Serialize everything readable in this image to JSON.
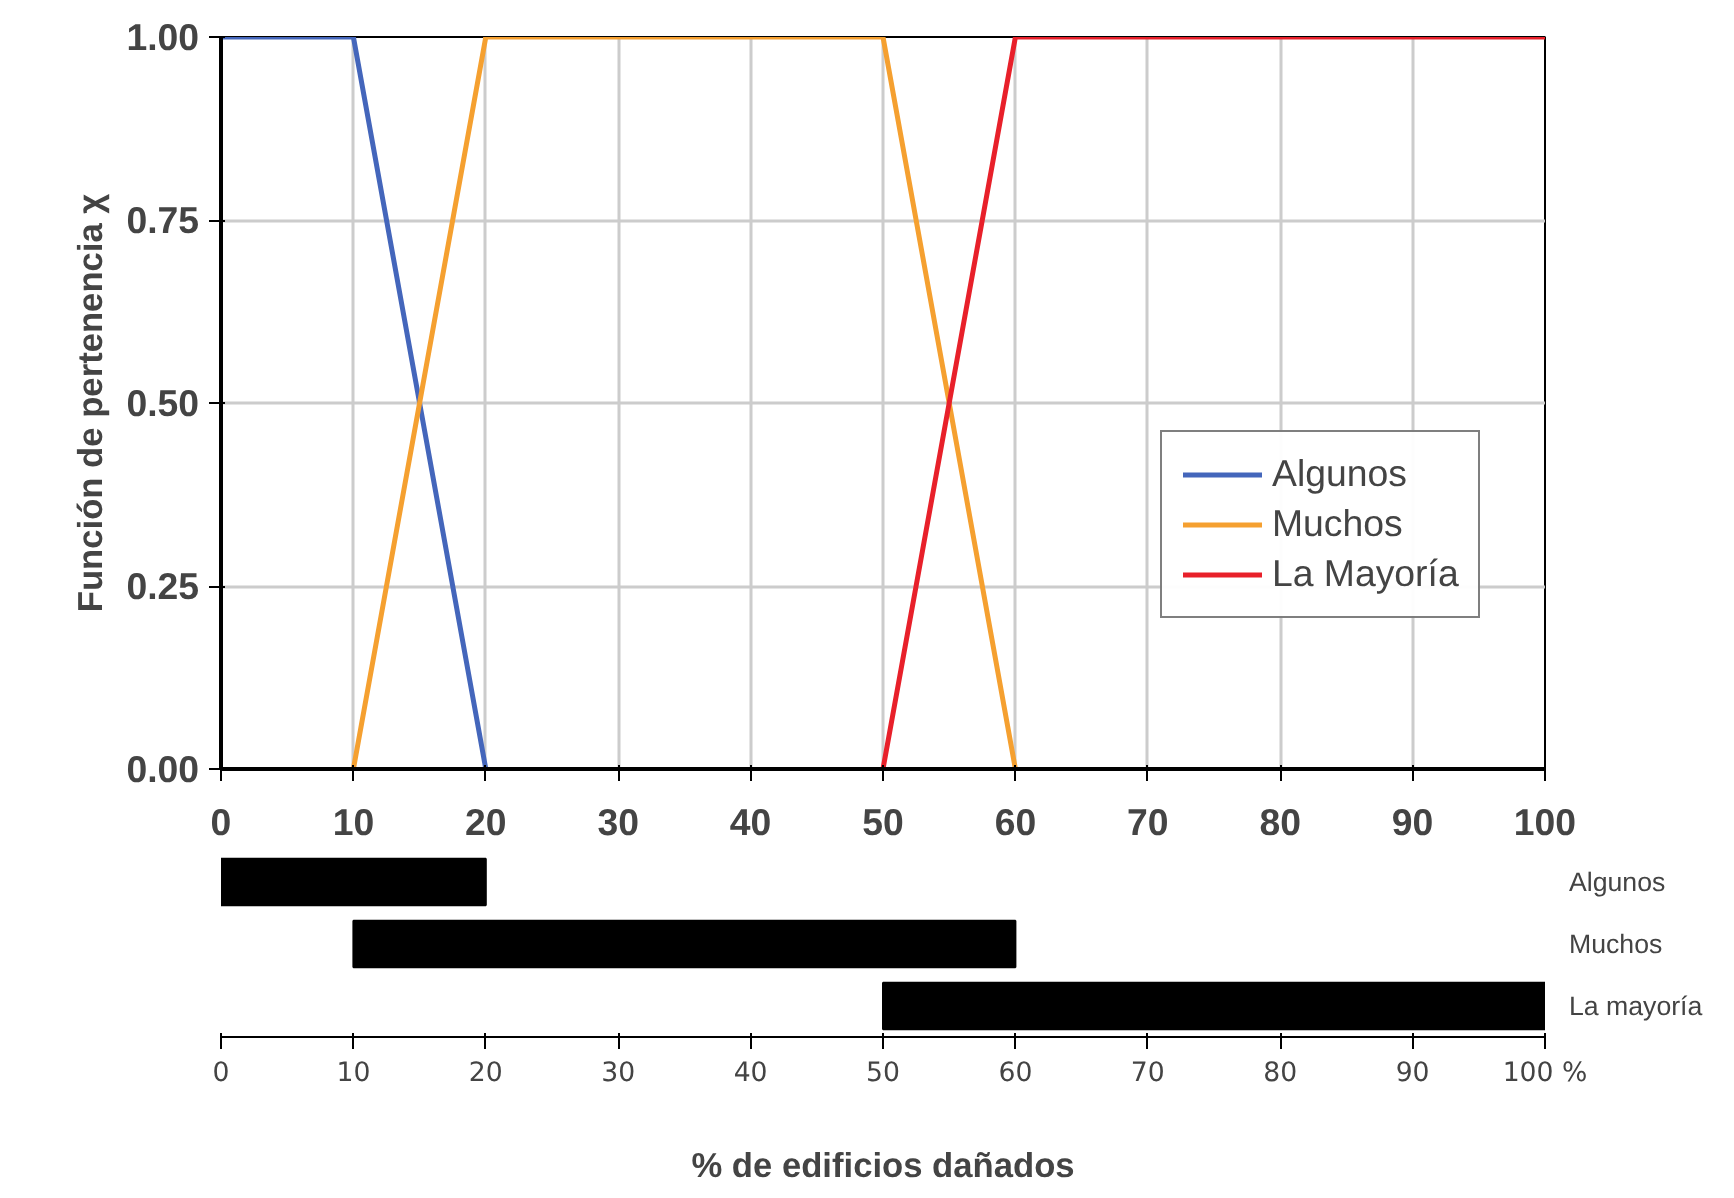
{
  "chart_data": [
    {
      "type": "line",
      "ylabel": "Función de pertenencia χ",
      "xlim": [
        0,
        100
      ],
      "ylim": [
        0,
        1
      ],
      "xticks": [
        0,
        10,
        20,
        30,
        40,
        50,
        60,
        70,
        80,
        90,
        100
      ],
      "yticks": [
        {
          "value": 0,
          "label": "0.00"
        },
        {
          "value": 0.25,
          "label": "0.25"
        },
        {
          "value": 0.5,
          "label": "0.50"
        },
        {
          "value": 0.75,
          "label": "0.75"
        },
        {
          "value": 1,
          "label": "1.00"
        }
      ],
      "grid": true,
      "legend": "right",
      "line_style": "solid",
      "marker": "none",
      "series": [
        {
          "name": "Algunos",
          "color": "#4466bb",
          "x": [
            0,
            10,
            20
          ],
          "values": [
            1,
            1,
            0
          ]
        },
        {
          "name": "Muchos",
          "color": "#f5a030",
          "x": [
            10,
            20,
            50,
            60
          ],
          "values": [
            0,
            1,
            1,
            0
          ]
        },
        {
          "name": "La Mayoría",
          "color": "#e8202a",
          "x": [
            50,
            60,
            100
          ],
          "values": [
            0,
            1,
            1
          ]
        }
      ]
    },
    {
      "type": "bar",
      "orientation": "horizontal",
      "xlabel": "% de edificios dañados",
      "categories": [
        "Algunos",
        "Muchos",
        "La mayoría"
      ],
      "base": [
        0,
        10,
        50
      ],
      "values": [
        20,
        50,
        50
      ],
      "color": "#000000",
      "xlim": [
        0,
        100
      ],
      "xticks": [
        0,
        10,
        20,
        30,
        40,
        50,
        60,
        70,
        80,
        90,
        {
          "value": 100,
          "label": "100 %"
        }
      ],
      "grid": false
    }
  ]
}
